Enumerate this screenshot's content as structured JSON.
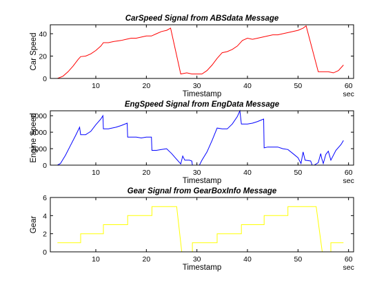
{
  "chart_data": [
    {
      "type": "line",
      "title": "CarSpeed  Signal  from  ABSdata  Message",
      "xlabel": "Timestamp",
      "ylabel": "Car Speed",
      "x_unit": "sec",
      "xlim": [
        1,
        61
      ],
      "ylim": [
        0,
        48
      ],
      "xticks": [
        10,
        20,
        30,
        40,
        50,
        60
      ],
      "yticks": [
        0,
        20,
        40
      ],
      "color": "#ff0000",
      "series": [
        {
          "points": [
            [
              2.4,
              0
            ],
            [
              3.5,
              2
            ],
            [
              4.5,
              6
            ],
            [
              5.5,
              11
            ],
            [
              6.5,
              17
            ],
            [
              7,
              19.5
            ],
            [
              8,
              20
            ],
            [
              9,
              22
            ],
            [
              10,
              25
            ],
            [
              11,
              29
            ],
            [
              11.5,
              32
            ],
            [
              12.5,
              32
            ],
            [
              13.5,
              33
            ],
            [
              15,
              34
            ],
            [
              16,
              35
            ],
            [
              17,
              36
            ],
            [
              18,
              36
            ],
            [
              19,
              37
            ],
            [
              20,
              38
            ],
            [
              21,
              38
            ],
            [
              22,
              40
            ],
            [
              23,
              42
            ],
            [
              24,
              43
            ],
            [
              24.8,
              45
            ],
            [
              26.8,
              4
            ],
            [
              28,
              5
            ],
            [
              29,
              4
            ],
            [
              31,
              4
            ],
            [
              32,
              7
            ],
            [
              33,
              12
            ],
            [
              34,
              18
            ],
            [
              35,
              23
            ],
            [
              36,
              24
            ],
            [
              37,
              26
            ],
            [
              38,
              29
            ],
            [
              39,
              34
            ],
            [
              40,
              36
            ],
            [
              41,
              35
            ],
            [
              42,
              36
            ],
            [
              43,
              37
            ],
            [
              44,
              38
            ],
            [
              45,
              39
            ],
            [
              46,
              39
            ],
            [
              47,
              40
            ],
            [
              48,
              41
            ],
            [
              49,
              42
            ],
            [
              50,
              43
            ],
            [
              51,
              45
            ],
            [
              51.6,
              47
            ],
            [
              54,
              6
            ],
            [
              55,
              6
            ],
            [
              56,
              6
            ],
            [
              57,
              5
            ],
            [
              58,
              7
            ],
            [
              59,
              12
            ]
          ]
        }
      ]
    },
    {
      "type": "line",
      "title": "EngSpeed  Signal  from  EngData  Message",
      "xlabel": "Timestamp",
      "ylabel": "Engine Speed",
      "x_unit": "sec",
      "xlim": [
        1,
        61
      ],
      "ylim": [
        0,
        6600
      ],
      "xticks": [
        10,
        20,
        30,
        40,
        50,
        60
      ],
      "yticks": [
        0,
        2000,
        4000,
        6000
      ],
      "color": "#0000ff",
      "series": [
        {
          "points": [
            [
              2.4,
              0
            ],
            [
              3,
              200
            ],
            [
              4,
              1200
            ],
            [
              5,
              2400
            ],
            [
              6,
              3600
            ],
            [
              6.8,
              4600
            ],
            [
              7,
              3700
            ],
            [
              8,
              3700
            ],
            [
              9,
              4100
            ],
            [
              10,
              4900
            ],
            [
              11,
              5600
            ],
            [
              11.4,
              6000
            ],
            [
              11.5,
              4400
            ],
            [
              12.5,
              4400
            ],
            [
              14,
              4600
            ],
            [
              15,
              4800
            ],
            [
              16.2,
              5100
            ],
            [
              16.3,
              3400
            ],
            [
              18,
              3400
            ],
            [
              19,
              3300
            ],
            [
              20,
              3400
            ],
            [
              21,
              3400
            ],
            [
              21.1,
              1800
            ],
            [
              22,
              1800
            ],
            [
              23,
              1900
            ],
            [
              24,
              2000
            ],
            [
              25,
              1400
            ],
            [
              26,
              700
            ],
            [
              26.8,
              150
            ],
            [
              27.2,
              1100
            ],
            [
              27.6,
              600
            ],
            [
              28.5,
              600
            ],
            [
              29,
              500
            ],
            [
              29.1,
              0
            ],
            [
              30.5,
              0
            ],
            [
              31,
              600
            ],
            [
              32,
              1600
            ],
            [
              33,
              3000
            ],
            [
              34,
              4500
            ],
            [
              35,
              4400
            ],
            [
              36,
              4400
            ],
            [
              37,
              5000
            ],
            [
              38,
              5900
            ],
            [
              38.5,
              6600
            ],
            [
              38.8,
              5000
            ],
            [
              40,
              5000
            ],
            [
              41,
              5100
            ],
            [
              42,
              5300
            ],
            [
              43.2,
              5600
            ],
            [
              43.3,
              2100
            ],
            [
              44,
              2200
            ],
            [
              45,
              2200
            ],
            [
              46,
              2200
            ],
            [
              47,
              2000
            ],
            [
              48,
              1900
            ],
            [
              49,
              1400
            ],
            [
              50,
              900
            ],
            [
              50.6,
              200
            ],
            [
              51,
              1600
            ],
            [
              51.4,
              600
            ],
            [
              52.5,
              500
            ],
            [
              52.8,
              0
            ],
            [
              53.2,
              0
            ],
            [
              54,
              300
            ],
            [
              54.5,
              1400
            ],
            [
              54.7,
              800
            ],
            [
              55,
              200
            ],
            [
              55.5,
              1300
            ],
            [
              56,
              1700
            ],
            [
              56.5,
              600
            ],
            [
              57.5,
              1800
            ],
            [
              58.5,
              2500
            ],
            [
              59,
              3000
            ]
          ]
        }
      ]
    },
    {
      "type": "line",
      "title": "Gear  Signal  from  GearBoxInfo  Message",
      "xlabel": "Timestamp",
      "ylabel": "Gear",
      "x_unit": "sec",
      "xlim": [
        1,
        61
      ],
      "ylim": [
        0,
        6
      ],
      "xticks": [
        10,
        20,
        30,
        40,
        50,
        60
      ],
      "yticks": [
        0,
        2,
        4,
        6
      ],
      "color": "#ffff00",
      "series": [
        {
          "points": [
            [
              2.4,
              1
            ],
            [
              7,
              1
            ],
            [
              7,
              2
            ],
            [
              11.5,
              2
            ],
            [
              11.5,
              3
            ],
            [
              16.3,
              3
            ],
            [
              16.3,
              4
            ],
            [
              21.1,
              4
            ],
            [
              21.1,
              5
            ],
            [
              26,
              5
            ],
            [
              27,
              0
            ],
            [
              29.1,
              0
            ],
            [
              29.1,
              1
            ],
            [
              34,
              1
            ],
            [
              34,
              2
            ],
            [
              38.8,
              2
            ],
            [
              38.8,
              3
            ],
            [
              43.3,
              3
            ],
            [
              43.3,
              4
            ],
            [
              48,
              4
            ],
            [
              48,
              5
            ],
            [
              53.6,
              5
            ],
            [
              54.8,
              0
            ],
            [
              56.5,
              0
            ],
            [
              56.5,
              1
            ],
            [
              59,
              1
            ]
          ]
        }
      ]
    }
  ]
}
